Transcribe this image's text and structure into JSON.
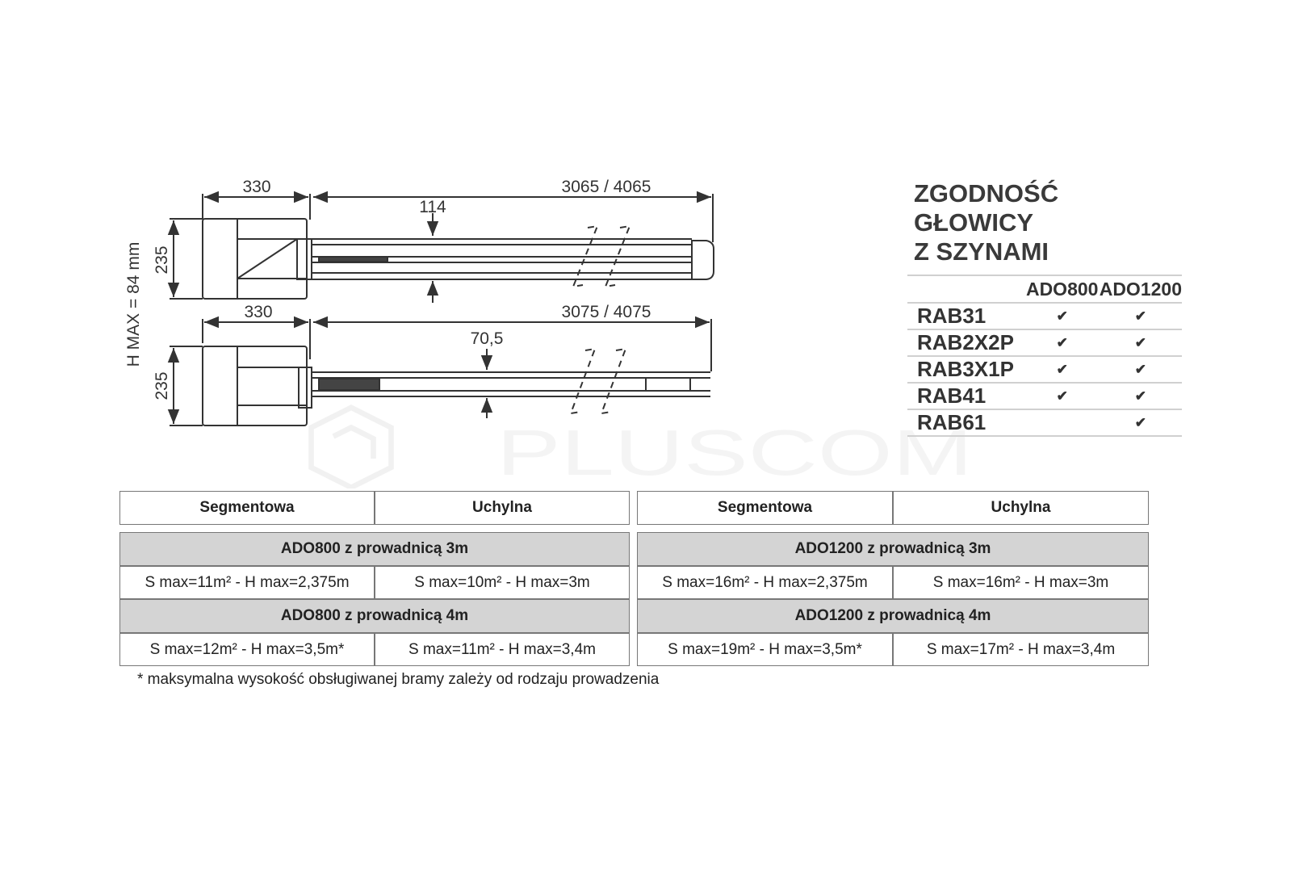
{
  "drawing": {
    "top_view": {
      "motor_width": "330",
      "rail_length": "3065 / 4065",
      "rail_height": "114",
      "motor_height": "235"
    },
    "bottom_view": {
      "motor_width": "330",
      "rail_length": "3075 / 4075",
      "rail_height": "70,5",
      "motor_height": "235"
    },
    "h_max_label": "H MAX = 84  mm"
  },
  "watermark": "PLUSCOM",
  "compatibility": {
    "title_line1": "ZGODNOŚĆ GŁOWICY",
    "title_line2": "Z SZYNAMI",
    "columns": [
      "ADO800",
      "ADO1200"
    ],
    "check_symbol": "✔",
    "rows": [
      {
        "rail": "RAB31",
        "ado800": "✔",
        "ado1200": "✔"
      },
      {
        "rail": "RAB2X2P",
        "ado800": "✔",
        "ado1200": "✔"
      },
      {
        "rail": "RAB3X1P",
        "ado800": "✔",
        "ado1200": "✔"
      },
      {
        "rail": "RAB41",
        "ado800": "✔",
        "ado1200": "✔"
      },
      {
        "rail": "RAB61",
        "ado800": "",
        "ado1200": "✔"
      }
    ]
  },
  "spec_tables": [
    {
      "headers": [
        "Segmentowa",
        "Uchylna"
      ],
      "groups": [
        {
          "title": "ADO800 z prowadnicą 3m",
          "segmentowa": "S max=11m² - H max=2,375m",
          "uchylna": "S max=10m² - H max=3m"
        },
        {
          "title": "ADO800 z prowadnicą 4m",
          "segmentowa": "S max=12m² - H max=3,5m*",
          "uchylna": "S max=11m² - H max=3,4m"
        }
      ]
    },
    {
      "headers": [
        "Segmentowa",
        "Uchylna"
      ],
      "groups": [
        {
          "title": "ADO1200 z prowadnicą 3m",
          "segmentowa": "S max=16m² - H max=2,375m",
          "uchylna": "S max=16m² - H max=3m"
        },
        {
          "title": "ADO1200 z prowadnicą 4m",
          "segmentowa": "S max=19m² - H max=3,5m*",
          "uchylna": "S max=17m² - H max=3,4m"
        }
      ]
    }
  ],
  "footnote": "* maksymalna wysokość obsługiwanej bramy zależy od rodzaju prowadzenia"
}
